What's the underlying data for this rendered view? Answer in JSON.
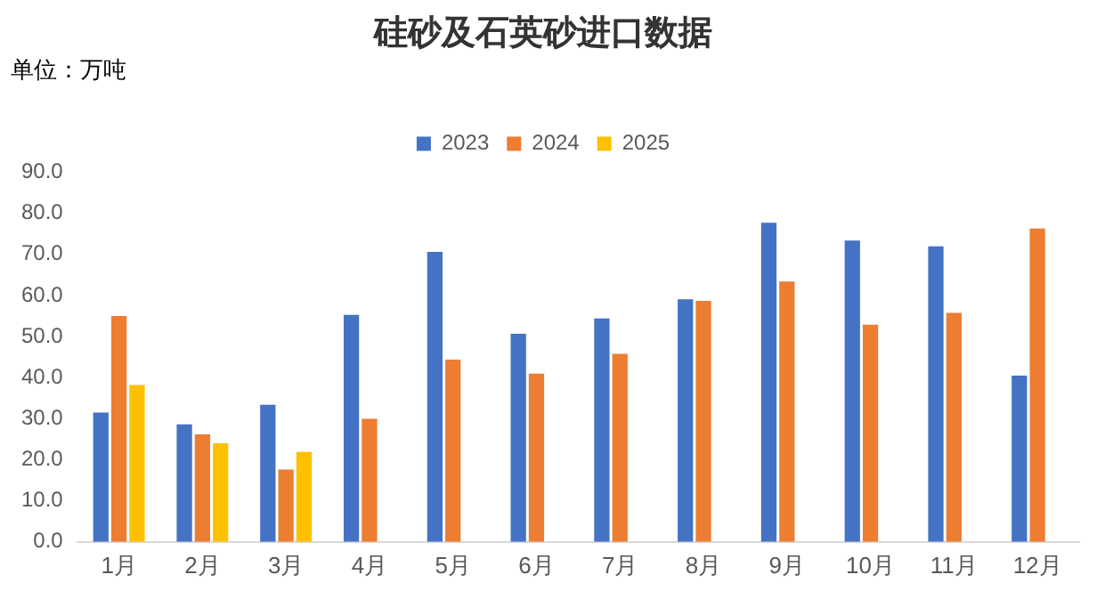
{
  "chart_data": {
    "type": "bar",
    "title": "硅砂及石英砂进口数据",
    "annotations": [
      "单位：万吨"
    ],
    "categories": [
      "1月",
      "2月",
      "3月",
      "4月",
      "5月",
      "6月",
      "7月",
      "8月",
      "9月",
      "10月",
      "11月",
      "12月"
    ],
    "series": [
      {
        "name": "2023",
        "color": "#4472c4",
        "values": [
          31.5,
          28.6,
          33.4,
          55.3,
          70.6,
          50.7,
          54.4,
          59.1,
          77.7,
          73.4,
          72.0,
          40.5
        ]
      },
      {
        "name": "2024",
        "color": "#ed7d31",
        "values": [
          55.0,
          26.2,
          17.6,
          30.0,
          44.4,
          41.0,
          45.8,
          58.7,
          63.4,
          52.9,
          55.8,
          76.3
        ]
      },
      {
        "name": "2025",
        "color": "#ffc000",
        "values": [
          38.2,
          24.0,
          21.9,
          null,
          null,
          null,
          null,
          null,
          null,
          null,
          null,
          null
        ]
      }
    ],
    "ylim": [
      0,
      90
    ],
    "yticks": [
      {
        "value": 0,
        "label": "0.0"
      },
      {
        "value": 10,
        "label": "10.0"
      },
      {
        "value": 20,
        "label": "20.0"
      },
      {
        "value": 30,
        "label": "30.0"
      },
      {
        "value": 40,
        "label": "40.0"
      },
      {
        "value": 50,
        "label": "50.0"
      },
      {
        "value": 60,
        "label": "60.0"
      },
      {
        "value": 70,
        "label": "70.0"
      },
      {
        "value": 80,
        "label": "80.0"
      },
      {
        "value": 90,
        "label": "90.0"
      }
    ],
    "grid": false,
    "legend": "top"
  }
}
